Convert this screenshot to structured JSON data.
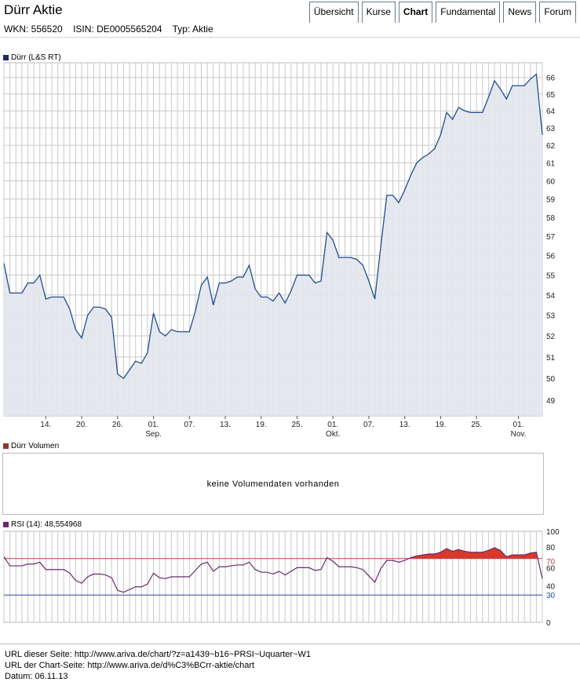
{
  "header": {
    "title": "Dürr Aktie",
    "tabs": [
      {
        "label": "Übersicht",
        "active": false
      },
      {
        "label": "Kurse",
        "active": false
      },
      {
        "label": "Chart",
        "active": true
      },
      {
        "label": "Fundamental",
        "active": false
      },
      {
        "label": "News",
        "active": false
      },
      {
        "label": "Forum",
        "active": false
      }
    ],
    "wkn": "WKN: 556520",
    "isin": "ISIN: DE0005565204",
    "typ": "Typ: Aktie"
  },
  "colors": {
    "price_line": "#1f4f8f",
    "price_fill": "#e3e6ee",
    "price_legend": "#1c2f5a",
    "volume_legend": "#8b3a2a",
    "rsi_line": "#6a2a6a",
    "rsi_over": "#d8392a",
    "rsi_70_line": "#c04050",
    "rsi_30_line": "#2a4aa8",
    "grid": "#c9c9c9"
  },
  "volume": {
    "legend": "Dürr Volumen",
    "message": "keine Volumendaten vorhanden"
  },
  "footer": {
    "url_page": "URL dieser Seite: http://www.ariva.de/chart/?z=a1439~b16~PRSI~Uquarter~W1",
    "url_chart": "URL der Chart-Seite: http://www.ariva.de/d%C3%BCrr-aktie/chart",
    "datum": "Datum: 06.11.13"
  },
  "chart_data": [
    {
      "type": "area",
      "legend": "Dürr (L&S RT)",
      "x_tick_labels": [
        {
          "idx": 7,
          "label": "14."
        },
        {
          "idx": 13,
          "label": "20."
        },
        {
          "idx": 19,
          "label": "26."
        },
        {
          "idx": 25,
          "label": "01.",
          "sub": "Sep."
        },
        {
          "idx": 31,
          "label": "07."
        },
        {
          "idx": 37,
          "label": "13."
        },
        {
          "idx": 43,
          "label": "19."
        },
        {
          "idx": 49,
          "label": "25."
        },
        {
          "idx": 55,
          "label": "01.",
          "sub": "Okt."
        },
        {
          "idx": 61,
          "label": "07."
        },
        {
          "idx": 67,
          "label": "13."
        },
        {
          "idx": 73,
          "label": "19."
        },
        {
          "idx": 79,
          "label": "25."
        },
        {
          "idx": 86,
          "label": "01.",
          "sub": "Nov."
        }
      ],
      "y_ticks": [
        49,
        50,
        51,
        52,
        53,
        54,
        55,
        56,
        57,
        58,
        59,
        60,
        61,
        62,
        63,
        64,
        65,
        66
      ],
      "y_scale": "log",
      "ylim": [
        48.3,
        66.9
      ],
      "values": [
        55.6,
        54.1,
        54.1,
        54.1,
        54.6,
        54.6,
        55.0,
        53.8,
        53.9,
        53.9,
        53.9,
        53.3,
        52.3,
        51.9,
        53.0,
        53.4,
        53.4,
        53.3,
        52.9,
        50.2,
        50.0,
        50.4,
        50.8,
        50.7,
        51.2,
        53.1,
        52.2,
        52.0,
        52.3,
        52.2,
        52.2,
        52.2,
        53.2,
        54.5,
        54.9,
        53.5,
        54.6,
        54.6,
        54.7,
        54.9,
        54.9,
        55.5,
        54.3,
        53.9,
        53.9,
        53.7,
        54.1,
        53.6,
        54.2,
        55.0,
        55.0,
        55.0,
        54.6,
        54.7,
        57.2,
        56.8,
        55.9,
        55.9,
        55.9,
        55.8,
        55.5,
        54.7,
        53.8,
        56.5,
        59.2,
        59.2,
        58.8,
        59.5,
        60.3,
        61.0,
        61.3,
        61.5,
        61.8,
        62.6,
        63.9,
        63.5,
        64.2,
        64.0,
        63.9,
        63.9,
        63.9,
        64.8,
        65.8,
        65.3,
        64.7,
        65.5,
        65.5,
        65.5,
        65.9,
        66.2,
        62.6
      ]
    },
    {
      "type": "line",
      "legend": "RSI (14): 48,554968",
      "y_ticks": [
        0,
        30,
        40,
        60,
        70,
        80,
        100
      ],
      "ylim": [
        0,
        100
      ],
      "thresholds": [
        70,
        30
      ],
      "values": [
        72,
        62,
        62,
        62,
        64,
        64,
        66,
        58,
        58,
        58,
        58,
        54,
        46,
        43,
        50,
        53,
        53,
        52,
        49,
        35,
        33,
        36,
        39,
        39,
        42,
        54,
        49,
        48,
        50,
        50,
        50,
        50,
        57,
        64,
        66,
        56,
        61,
        61,
        62,
        63,
        63,
        66,
        58,
        55,
        55,
        53,
        56,
        52,
        56,
        60,
        60,
        60,
        57,
        58,
        71,
        67,
        61,
        61,
        61,
        60,
        58,
        51,
        44,
        59,
        68,
        68,
        66,
        68,
        71,
        73,
        74,
        75,
        75,
        77,
        81,
        78,
        80,
        78,
        77,
        77,
        77,
        79,
        82,
        79,
        72,
        74,
        74,
        74,
        76,
        77,
        48
      ]
    }
  ]
}
